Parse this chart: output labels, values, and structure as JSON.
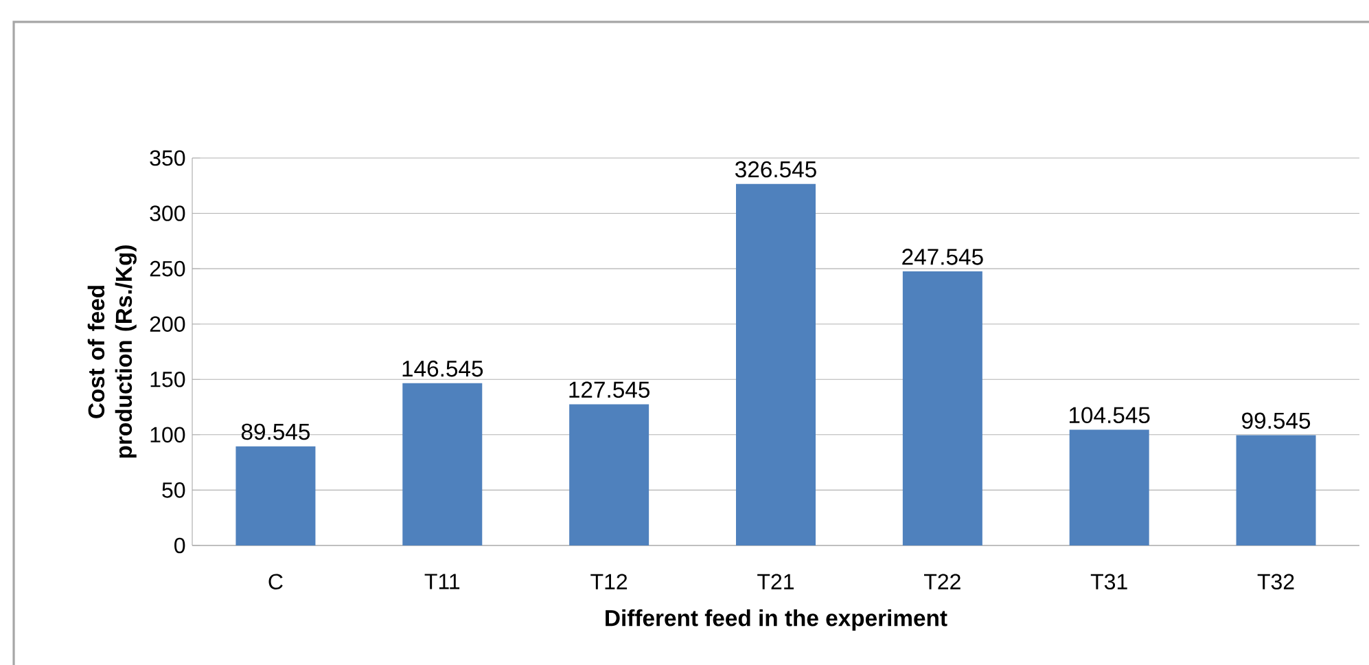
{
  "chart_data": {
    "type": "bar",
    "xlabel": "Different feed in the experiment",
    "ylabel": "Cost of feed production (Rs./Kg)",
    "categories": [
      "C",
      "T11",
      "T12",
      "T21",
      "T22",
      "T31",
      "T32"
    ],
    "values": [
      89.545,
      146.545,
      127.545,
      326.545,
      247.545,
      104.545,
      99.545
    ],
    "color": "#4f81bd",
    "ylim": [
      0,
      350
    ],
    "yticks": [
      0,
      50,
      100,
      150,
      200,
      250,
      300,
      350
    ],
    "grid": "y",
    "data_labels": true
  }
}
